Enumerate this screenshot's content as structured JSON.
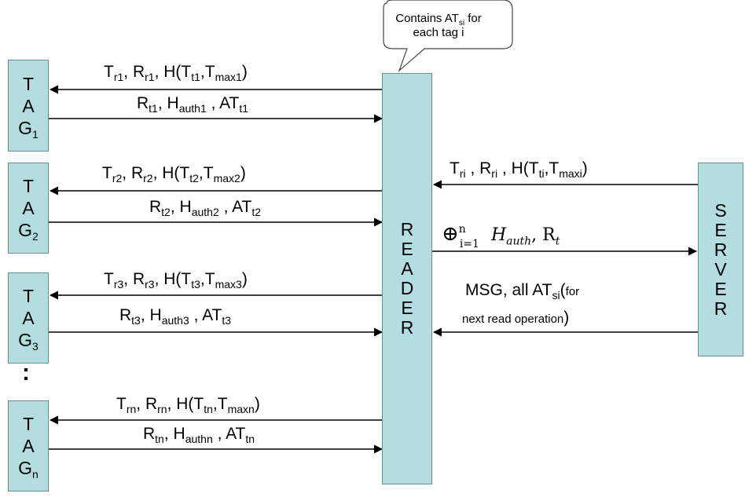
{
  "bubble": {
    "line1": "Contains AT",
    "sub": "si",
    "line1_end": " for",
    "line2": "each tag i"
  },
  "reader": {
    "letters": [
      "R",
      "E",
      "A",
      "D",
      "E",
      "R"
    ]
  },
  "server": {
    "letters": [
      "S",
      "E",
      "R",
      "V",
      "E",
      "R"
    ]
  },
  "tags": [
    {
      "l1": "T",
      "l2": "A",
      "l3": "G",
      "sub": "1"
    },
    {
      "l1": "T",
      "l2": "A",
      "l3": "G",
      "sub": "2"
    },
    {
      "l1": "T",
      "l2": "A",
      "l3": "G",
      "sub": "3"
    },
    {
      "l1": "T",
      "l2": "A",
      "l3": "G",
      "sub": "n"
    }
  ],
  "ellipsis": ":",
  "messages": {
    "tag1_req": {
      "a": "T",
      "as": "r1",
      "b": ", R",
      "bs": "r1",
      "c": ", H(T",
      "cs": "t1",
      "d": ",T",
      "ds": "max1",
      "e": ")"
    },
    "tag1_resp": {
      "a": "R",
      "as": "t1",
      "b": ", H",
      "bs": "auth1",
      "c": " , AT",
      "cs": "t1"
    },
    "tag2_req": {
      "a": "T",
      "as": "r2",
      "b": ", R",
      "bs": "r2",
      "c": ", H(T",
      "cs": "t2",
      "d": ",T",
      "ds": "max2",
      "e": ")"
    },
    "tag2_resp": {
      "a": "R",
      "as": "t2",
      "b": ", H",
      "bs": "auth2",
      "c": " , AT",
      "cs": "t2"
    },
    "tag3_req": {
      "a": "T",
      "as": "r3",
      "b": ", R",
      "bs": "r3",
      "c": ", H(T",
      "cs": "t3",
      "d": ",T",
      "ds": "max3",
      "e": ")"
    },
    "tag3_resp": {
      "a": "R",
      "as": "t3",
      "b": ", H",
      "bs": "auth3",
      "c": " , AT",
      "cs": "t3"
    },
    "tagn_req": {
      "a": "T",
      "as": "rn",
      "b": ", R",
      "bs": "rn",
      "c": ", H(T",
      "cs": "tn",
      "d": ",T",
      "ds": "maxn",
      "e": ")"
    },
    "tagn_resp": {
      "a": "R",
      "as": "tn",
      "b": ", H",
      "bs": "authn",
      "c": " , AT",
      "cs": "tn"
    },
    "server_req": {
      "a": "T",
      "as": "ri",
      "b": " , R",
      "bs": "ri",
      "c": " , H(T",
      "cs": "ti",
      "d": ",T",
      "ds": "maxi",
      "e": ")"
    },
    "reader_to_server": {
      "op": "⊕",
      "sub": "i=1",
      "sup": "n",
      "h": "H",
      "hs": "auth",
      "r": ", R",
      "rs": "t"
    },
    "server_resp": {
      "a": "MSG, all AT",
      "as": "si",
      "b": "(",
      "small1": "for",
      "small2": "next read operation",
      "c": ")"
    }
  }
}
